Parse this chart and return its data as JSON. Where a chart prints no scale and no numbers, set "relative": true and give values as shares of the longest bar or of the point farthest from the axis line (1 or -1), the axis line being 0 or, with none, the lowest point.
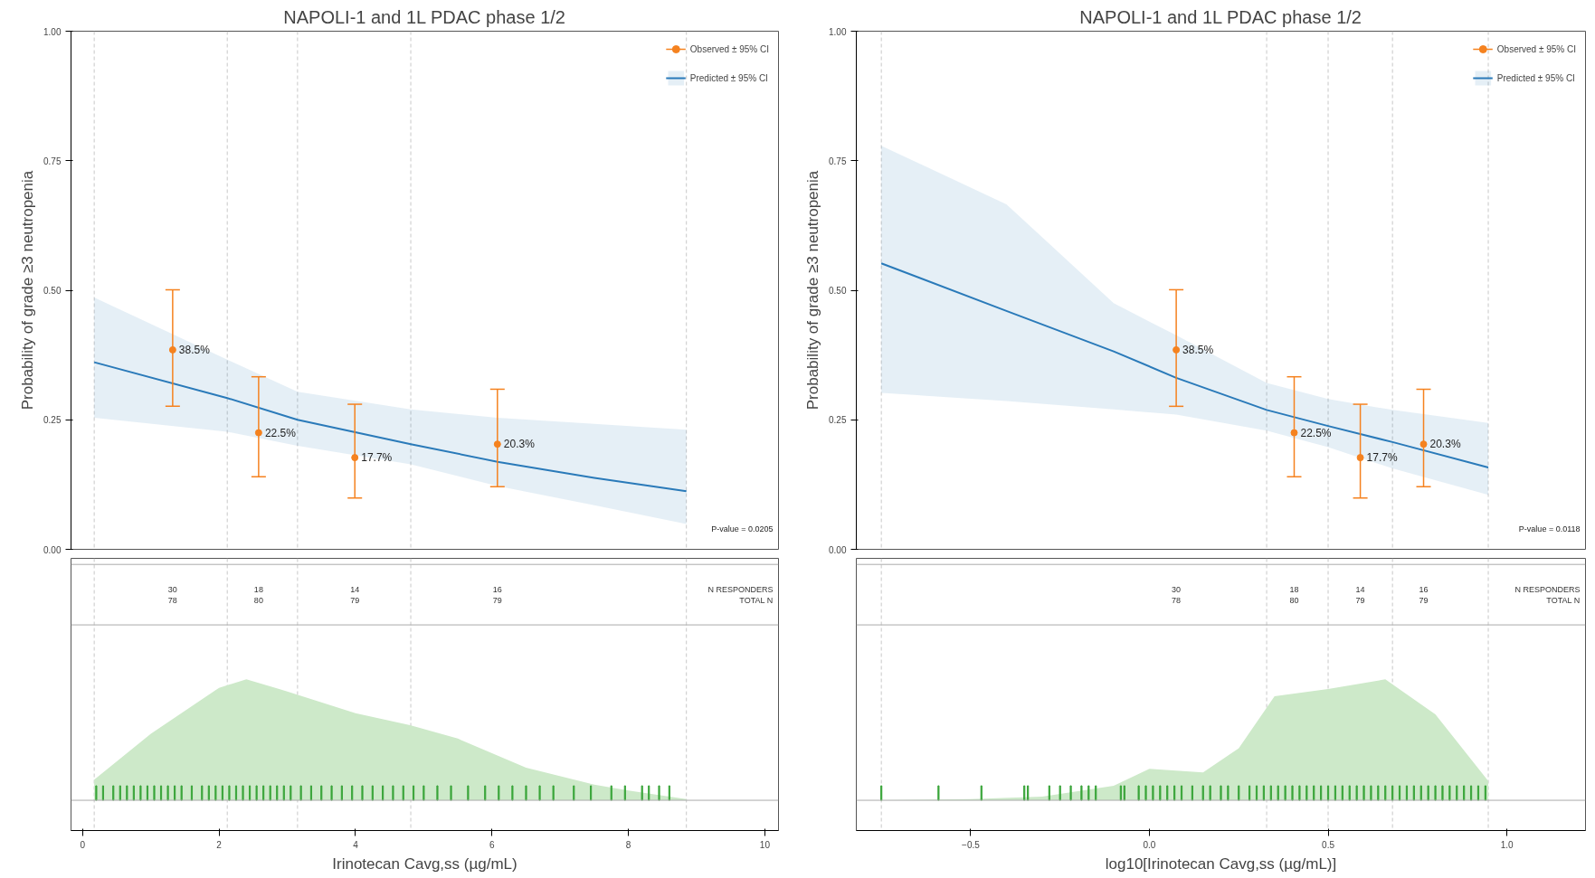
{
  "chart_data": [
    {
      "type": "line",
      "title": "NAPOLI-1 and 1L PDAC phase 1/2",
      "ylabel": "Probability of grade ≥3 neutropenia",
      "xlim": [
        -0.17,
        10.2
      ],
      "ylim": [
        0,
        1
      ],
      "yticks": [
        {
          "value": 0,
          "label": "0.00"
        },
        {
          "value": 0.25,
          "label": "0.25"
        },
        {
          "value": 0.5,
          "label": "0.50"
        },
        {
          "value": 0.75,
          "label": "0.75"
        },
        {
          "value": 1,
          "label": "1.00"
        }
      ],
      "tick_labels": "y",
      "grid": false,
      "legend": "top right",
      "series": [
        {
          "name": "Predicted ± 95% CI",
          "color": "#2a7ab9",
          "x": [
            0.17,
            2.12,
            3.15,
            4.81,
            6.08,
            7.5,
            8.85
          ],
          "values": [
            0.361,
            0.292,
            0.25,
            0.203,
            0.169,
            0.138,
            0.112
          ],
          "lower": [
            0.254,
            0.227,
            0.2,
            0.164,
            0.122,
            0.085,
            0.049
          ],
          "upper": [
            0.486,
            0.366,
            0.304,
            0.27,
            0.254,
            0.242,
            0.231
          ]
        },
        {
          "name": "Observed ± 95% CI",
          "type": "scatter",
          "marker": "circle",
          "color": "#f5821f",
          "x": [
            1.32,
            2.58,
            3.99,
            6.08
          ],
          "values": [
            0.385,
            0.225,
            0.177,
            0.203
          ],
          "errors": [
            [
              0.276,
              0.501
            ],
            [
              0.14,
              0.333
            ],
            [
              0.099,
              0.28
            ],
            [
              0.121,
              0.309
            ]
          ],
          "value_labels": [
            "38.5%",
            "22.5%",
            "17.7%",
            "20.3%"
          ]
        }
      ],
      "ref_lines": [
        {
          "axis": "x",
          "value": 0.17,
          "color": "#c8c8c8",
          "line_style": "dashed"
        },
        {
          "axis": "x",
          "value": 2.12,
          "color": "#c8c8c8",
          "line_style": "dashed"
        },
        {
          "axis": "x",
          "value": 3.15,
          "color": "#c8c8c8",
          "line_style": "dashed"
        },
        {
          "axis": "x",
          "value": 4.81,
          "color": "#c8c8c8",
          "line_style": "dashed"
        },
        {
          "axis": "x",
          "value": 8.85,
          "color": "#c8c8c8",
          "line_style": "dashed"
        }
      ],
      "annotations": [
        "P-value = 0.0205"
      ]
    },
    {
      "type": "area",
      "relative": true,
      "xlabel": "Irinotecan Cavg,ss (µg/mL)",
      "xlim": [
        -0.17,
        10.2
      ],
      "xticks": [
        0,
        2,
        4,
        6,
        8,
        10
      ],
      "tick_labels": "x",
      "grid": false,
      "series": [
        {
          "color": "#cde9c9",
          "x": [
            0.17,
            1.0,
            2.0,
            2.4,
            3.0,
            4.0,
            4.8,
            5.5,
            6.5,
            7.5,
            8.0,
            8.85
          ],
          "values": [
            0.17,
            0.55,
            0.93,
            1.0,
            0.9,
            0.72,
            0.62,
            0.51,
            0.27,
            0.13,
            0.08,
            0.01
          ]
        },
        {
          "type": "bar",
          "color": "#3aa53a",
          "x": [
            0.2,
            0.3,
            0.45,
            0.55,
            0.65,
            0.75,
            0.85,
            0.95,
            1.05,
            1.15,
            1.25,
            1.35,
            1.45,
            1.6,
            1.75,
            1.85,
            1.95,
            2.05,
            2.15,
            2.25,
            2.35,
            2.45,
            2.55,
            2.65,
            2.75,
            2.85,
            2.95,
            3.05,
            3.2,
            3.35,
            3.5,
            3.65,
            3.8,
            3.95,
            4.1,
            4.25,
            4.4,
            4.55,
            4.7,
            4.85,
            5.0,
            5.2,
            5.4,
            5.65,
            5.9,
            6.1,
            6.3,
            6.5,
            6.7,
            6.9,
            7.2,
            7.45,
            7.75,
            7.95,
            8.2,
            8.3,
            8.45,
            8.6
          ],
          "values": [
            0.12,
            0.12,
            0.12,
            0.12,
            0.12,
            0.12,
            0.12,
            0.12,
            0.12,
            0.12,
            0.12,
            0.12,
            0.12,
            0.12,
            0.12,
            0.12,
            0.12,
            0.12,
            0.12,
            0.12,
            0.12,
            0.12,
            0.12,
            0.12,
            0.12,
            0.12,
            0.12,
            0.12,
            0.12,
            0.12,
            0.12,
            0.12,
            0.12,
            0.12,
            0.12,
            0.12,
            0.12,
            0.12,
            0.12,
            0.12,
            0.12,
            0.12,
            0.12,
            0.12,
            0.12,
            0.12,
            0.12,
            0.12,
            0.12,
            0.12,
            0.12,
            0.12,
            0.12,
            0.12,
            0.12,
            0.12,
            0.12,
            0.12
          ]
        }
      ],
      "ref_lines": [
        {
          "axis": "x",
          "value": 0.17,
          "color": "#c8c8c8",
          "line_style": "dashed"
        },
        {
          "axis": "x",
          "value": 2.12,
          "color": "#c8c8c8",
          "line_style": "dashed"
        },
        {
          "axis": "x",
          "value": 3.15,
          "color": "#c8c8c8",
          "line_style": "dashed"
        },
        {
          "axis": "x",
          "value": 4.81,
          "color": "#c8c8c8",
          "line_style": "dashed"
        },
        {
          "axis": "x",
          "value": 8.85,
          "color": "#c8c8c8",
          "line_style": "dashed"
        }
      ],
      "annotations": [
        "30\n78",
        "18\n80",
        "14\n79",
        "16\n79",
        "N RESPONDERS\nTOTAL N"
      ]
    },
    {
      "type": "line",
      "title": "NAPOLI-1 and 1L PDAC phase 1/2",
      "ylabel": "Probability of grade ≥3 neutropenia",
      "xlim": [
        -0.82,
        1.22
      ],
      "ylim": [
        0,
        1
      ],
      "yticks": [
        {
          "value": 0,
          "label": "0.00"
        },
        {
          "value": 0.25,
          "label": "0.25"
        },
        {
          "value": 0.5,
          "label": "0.50"
        },
        {
          "value": 0.75,
          "label": "0.75"
        },
        {
          "value": 1,
          "label": "1.00"
        }
      ],
      "tick_labels": "y",
      "grid": false,
      "legend": "top right",
      "series": [
        {
          "name": "Predicted ± 95% CI",
          "color": "#2a7ab9",
          "x": [
            -0.75,
            -0.4,
            -0.1,
            0.075,
            0.328,
            0.5,
            0.68,
            0.948
          ],
          "values": [
            0.552,
            0.46,
            0.382,
            0.331,
            0.269,
            0.238,
            0.207,
            0.158
          ],
          "lower": [
            0.302,
            0.286,
            0.27,
            0.26,
            0.229,
            0.197,
            0.156,
            0.105
          ],
          "upper": [
            0.779,
            0.666,
            0.475,
            0.413,
            0.321,
            0.29,
            0.269,
            0.244
          ]
        },
        {
          "name": "Observed ± 95% CI",
          "type": "scatter",
          "marker": "circle",
          "color": "#f5821f",
          "x": [
            0.075,
            0.405,
            0.59,
            0.767
          ],
          "values": [
            0.385,
            0.225,
            0.177,
            0.203
          ],
          "errors": [
            [
              0.276,
              0.501
            ],
            [
              0.14,
              0.333
            ],
            [
              0.099,
              0.28
            ],
            [
              0.121,
              0.309
            ]
          ],
          "value_labels": [
            "38.5%",
            "22.5%",
            "17.7%",
            "20.3%"
          ]
        }
      ],
      "ref_lines": [
        {
          "axis": "x",
          "value": -0.75,
          "color": "#c8c8c8",
          "line_style": "dashed"
        },
        {
          "axis": "x",
          "value": 0.328,
          "color": "#c8c8c8",
          "line_style": "dashed"
        },
        {
          "axis": "x",
          "value": 0.5,
          "color": "#c8c8c8",
          "line_style": "dashed"
        },
        {
          "axis": "x",
          "value": 0.68,
          "color": "#c8c8c8",
          "line_style": "dashed"
        },
        {
          "axis": "x",
          "value": 0.948,
          "color": "#c8c8c8",
          "line_style": "dashed"
        }
      ],
      "annotations": [
        "P-value = 0.0118"
      ]
    },
    {
      "type": "area",
      "relative": true,
      "xlabel": "log10[Irinotecan Cavg,ss (µg/mL)]",
      "xlim": [
        -0.82,
        1.22
      ],
      "xticks": [
        -0.5,
        {
          "value": 0,
          "label": "0.0"
        },
        0.5,
        {
          "value": 1,
          "label": "1.0"
        }
      ],
      "tick_labels": "x",
      "grid": false,
      "series": [
        {
          "color": "#cde9c9",
          "x": [
            -0.75,
            -0.5,
            -0.3,
            -0.1,
            0.0,
            0.15,
            0.25,
            0.35,
            0.5,
            0.66,
            0.8,
            0.948
          ],
          "values": [
            0.0,
            0.01,
            0.03,
            0.12,
            0.26,
            0.23,
            0.43,
            0.86,
            0.92,
            1.0,
            0.71,
            0.16
          ]
        },
        {
          "type": "bar",
          "color": "#3aa53a",
          "x": [
            -0.75,
            -0.59,
            -0.47,
            -0.35,
            -0.34,
            -0.28,
            -0.25,
            -0.22,
            -0.19,
            -0.17,
            -0.15,
            -0.08,
            -0.07,
            -0.03,
            -0.01,
            0.01,
            0.03,
            0.05,
            0.07,
            0.09,
            0.12,
            0.15,
            0.17,
            0.2,
            0.22,
            0.25,
            0.28,
            0.3,
            0.32,
            0.34,
            0.36,
            0.38,
            0.4,
            0.42,
            0.44,
            0.46,
            0.48,
            0.5,
            0.52,
            0.54,
            0.56,
            0.58,
            0.6,
            0.62,
            0.64,
            0.66,
            0.68,
            0.7,
            0.72,
            0.74,
            0.76,
            0.78,
            0.8,
            0.82,
            0.84,
            0.86,
            0.88,
            0.9,
            0.92,
            0.94
          ],
          "values": [
            0.12,
            0.12,
            0.12,
            0.12,
            0.12,
            0.12,
            0.12,
            0.12,
            0.12,
            0.12,
            0.12,
            0.12,
            0.12,
            0.12,
            0.12,
            0.12,
            0.12,
            0.12,
            0.12,
            0.12,
            0.12,
            0.12,
            0.12,
            0.12,
            0.12,
            0.12,
            0.12,
            0.12,
            0.12,
            0.12,
            0.12,
            0.12,
            0.12,
            0.12,
            0.12,
            0.12,
            0.12,
            0.12,
            0.12,
            0.12,
            0.12,
            0.12,
            0.12,
            0.12,
            0.12,
            0.12,
            0.12,
            0.12,
            0.12,
            0.12,
            0.12,
            0.12,
            0.12,
            0.12,
            0.12,
            0.12,
            0.12,
            0.12,
            0.12,
            0.12
          ]
        }
      ],
      "ref_lines": [
        {
          "axis": "x",
          "value": -0.75,
          "color": "#c8c8c8",
          "line_style": "dashed"
        },
        {
          "axis": "x",
          "value": 0.328,
          "color": "#c8c8c8",
          "line_style": "dashed"
        },
        {
          "axis": "x",
          "value": 0.5,
          "color": "#c8c8c8",
          "line_style": "dashed"
        },
        {
          "axis": "x",
          "value": 0.68,
          "color": "#c8c8c8",
          "line_style": "dashed"
        },
        {
          "axis": "x",
          "value": 0.948,
          "color": "#c8c8c8",
          "line_style": "dashed"
        }
      ],
      "annotations": [
        "30\n78",
        "18\n80",
        "14\n79",
        "16\n79",
        "N RESPONDERS\nTOTAL N"
      ]
    }
  ]
}
